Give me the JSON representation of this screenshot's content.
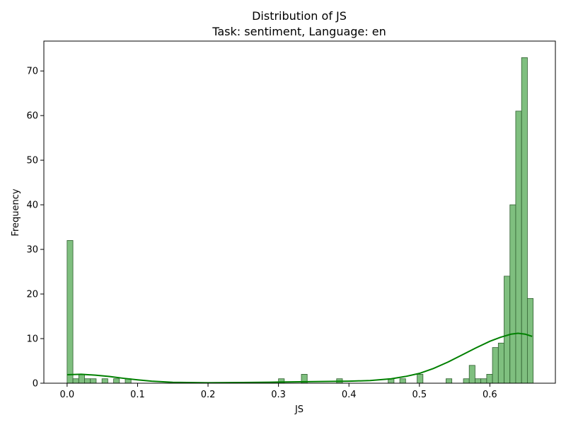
{
  "chart_data": {
    "type": "histogram",
    "title": "Distribution of JS",
    "subtitle": "Task: sentiment, Language: en",
    "xlabel": "JS",
    "ylabel": "Frequency",
    "xlim": [
      -0.033,
      0.693
    ],
    "ylim": [
      0,
      76.7
    ],
    "xticks": [
      "0.0",
      "0.1",
      "0.2",
      "0.3",
      "0.4",
      "0.5",
      "0.6"
    ],
    "yticks": [
      "0",
      "10",
      "20",
      "30",
      "40",
      "50",
      "60",
      "70"
    ],
    "bin_width": 0.00825,
    "bins": [
      {
        "x0": 0.0,
        "count": 32
      },
      {
        "x0": 0.00825,
        "count": 1
      },
      {
        "x0": 0.0165,
        "count": 2
      },
      {
        "x0": 0.02475,
        "count": 1
      },
      {
        "x0": 0.033,
        "count": 1
      },
      {
        "x0": 0.0495,
        "count": 1
      },
      {
        "x0": 0.066,
        "count": 1
      },
      {
        "x0": 0.0825,
        "count": 1
      },
      {
        "x0": 0.3,
        "count": 1
      },
      {
        "x0": 0.3325,
        "count": 2
      },
      {
        "x0": 0.3825,
        "count": 1
      },
      {
        "x0": 0.4557,
        "count": 1
      },
      {
        "x0": 0.4722,
        "count": 1
      },
      {
        "x0": 0.4968,
        "count": 2
      },
      {
        "x0": 0.5378,
        "count": 1
      },
      {
        "x0": 0.5625,
        "count": 1
      },
      {
        "x0": 0.5707,
        "count": 4
      },
      {
        "x0": 0.579,
        "count": 1
      },
      {
        "x0": 0.5872,
        "count": 1
      },
      {
        "x0": 0.5955,
        "count": 2
      },
      {
        "x0": 0.6037,
        "count": 8
      },
      {
        "x0": 0.612,
        "count": 9
      },
      {
        "x0": 0.6202,
        "count": 24
      },
      {
        "x0": 0.6285,
        "count": 40
      },
      {
        "x0": 0.6367,
        "count": 61
      },
      {
        "x0": 0.645,
        "count": 73
      },
      {
        "x0": 0.6532,
        "count": 19
      }
    ],
    "kde": {
      "x": [
        0.0,
        0.02,
        0.04,
        0.06,
        0.08,
        0.1,
        0.12,
        0.15,
        0.2,
        0.25,
        0.3,
        0.35,
        0.4,
        0.43,
        0.46,
        0.48,
        0.5,
        0.52,
        0.54,
        0.56,
        0.58,
        0.6,
        0.615,
        0.63,
        0.64,
        0.65,
        0.66
      ],
      "y": [
        1.9,
        2.0,
        1.8,
        1.5,
        1.1,
        0.75,
        0.45,
        0.2,
        0.1,
        0.15,
        0.25,
        0.35,
        0.45,
        0.6,
        1.0,
        1.5,
        2.2,
        3.3,
        4.7,
        6.3,
        7.9,
        9.4,
        10.3,
        11.0,
        11.2,
        11.0,
        10.5
      ]
    },
    "grid": false,
    "colors": {
      "bar_fill": "#7fbf7f",
      "bar_edge": "#2f5f2f",
      "kde_line": "#008000"
    }
  }
}
